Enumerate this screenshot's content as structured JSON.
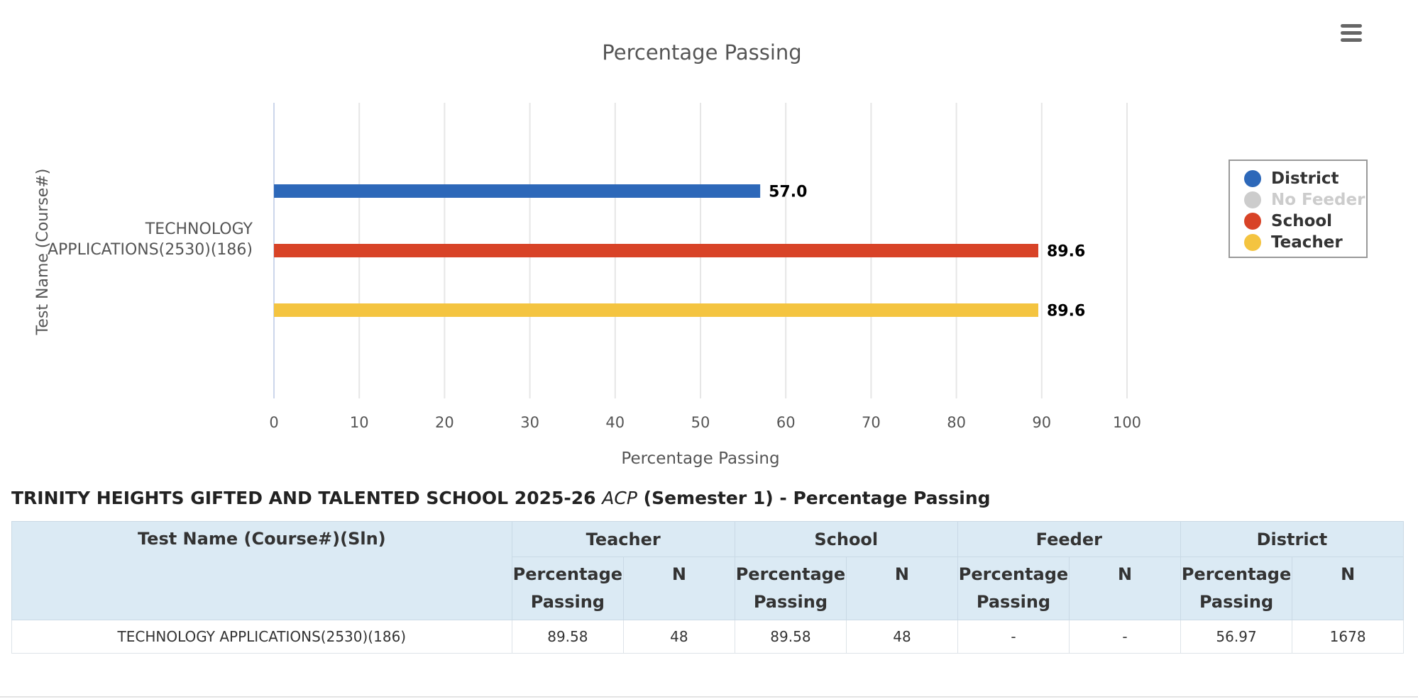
{
  "chart_data": {
    "type": "bar",
    "orientation": "horizontal",
    "title": "Percentage Passing",
    "xlabel": "Percentage Passing",
    "ylabel": "Test Name (Course#)",
    "categories": [
      [
        "TECHNOLOGY",
        "APPLICATIONS(2530)(186)"
      ]
    ],
    "xlim": [
      0,
      100
    ],
    "xticks": [
      0,
      10,
      20,
      30,
      40,
      50,
      60,
      70,
      80,
      90,
      100
    ],
    "grid": true,
    "legend_position": "right",
    "series": [
      {
        "name": "District",
        "color": "#2d68b9",
        "values": [
          57.0
        ],
        "label": "57.0",
        "visible": true
      },
      {
        "name": "School",
        "color": "#d84327",
        "values": [
          89.6
        ],
        "label": "89.6",
        "visible": true
      },
      {
        "name": "Teacher",
        "color": "#f4c440",
        "values": [
          89.6
        ],
        "label": "89.6",
        "visible": true
      }
    ],
    "legend": [
      {
        "name": "District",
        "color": "#2d68b9",
        "visible": true
      },
      {
        "name": "No Feeder",
        "color": "#cccccc",
        "visible": false
      },
      {
        "name": "School",
        "color": "#d84327",
        "visible": true
      },
      {
        "name": "Teacher",
        "color": "#f4c440",
        "visible": true
      }
    ]
  },
  "table": {
    "heading_prefix": "TRINITY HEIGHTS GIFTED AND TALENTED SCHOOL 2025-26",
    "heading_italic": "ACP",
    "heading_suffix": "(Semester 1) - Percentage Passing",
    "col_test": "Test Name (Course#)(Sln)",
    "groups": [
      "Teacher",
      "School",
      "Feeder",
      "District"
    ],
    "sub_pct": "Percentage Passing",
    "sub_n": "N",
    "rows": [
      [
        "TECHNOLOGY APPLICATIONS(2530)(186)",
        "89.58",
        "48",
        "89.58",
        "48",
        "-",
        "-",
        "56.97",
        "1678"
      ]
    ]
  },
  "menu": {
    "icon": "hamburger-menu-icon"
  }
}
